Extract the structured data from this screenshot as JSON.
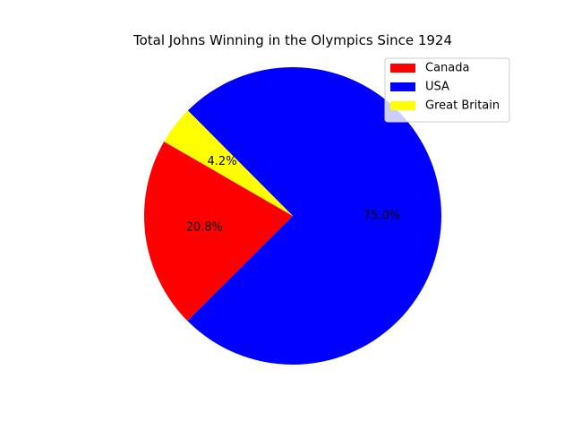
{
  "chart_data": {
    "type": "pie",
    "title": "Total Johns Winning in the Olympics Since 1924",
    "categories": [
      "Canada",
      "USA",
      "Great Britain"
    ],
    "values": [
      20.8,
      75.0,
      4.2
    ],
    "labels": [
      "20.8%",
      "75.0%",
      "4.2%"
    ],
    "colors": [
      "#ff0000",
      "#0000ff",
      "#ffff00"
    ],
    "start_angle_deg": 150,
    "direction": "counterclockwise",
    "legend": {
      "position": "upper right",
      "entries": [
        "Canada",
        "USA",
        "Great Britain"
      ]
    }
  }
}
